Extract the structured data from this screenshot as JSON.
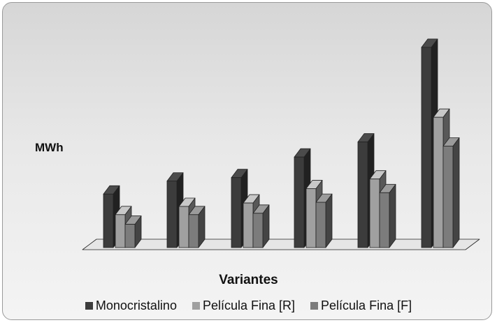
{
  "chart_data": {
    "type": "bar",
    "title": "",
    "xlabel": "Variantes",
    "ylabel": "MWh",
    "categories": [
      "",
      "",
      "",
      "",
      "",
      ""
    ],
    "series": [
      {
        "name": "Monocristalino",
        "color": "#3c3c3c",
        "values": [
          78,
          97,
          102,
          132,
          154,
          292
        ]
      },
      {
        "name": "Película Fina [R]",
        "color": "#a0a0a0",
        "values": [
          48,
          60,
          65,
          86,
          100,
          190
        ]
      },
      {
        "name": "Película Fina [F]",
        "color": "#7c7c7c",
        "values": [
          34,
          48,
          50,
          66,
          80,
          148
        ]
      }
    ],
    "ylim": [
      0,
      300
    ],
    "grid": false,
    "legend_position": "bottom"
  }
}
